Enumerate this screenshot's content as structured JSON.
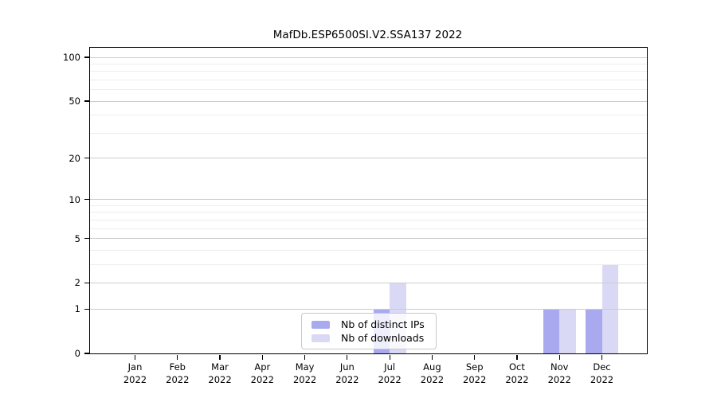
{
  "chart_data": {
    "type": "bar",
    "title": "MafDb.ESP6500SI.V2.SSA137 2022",
    "categories": [
      "Jan 2022",
      "Feb 2022",
      "Mar 2022",
      "Apr 2022",
      "May 2022",
      "Jun 2022",
      "Jul 2022",
      "Aug 2022",
      "Sep 2022",
      "Oct 2022",
      "Nov 2022",
      "Dec 2022"
    ],
    "series": [
      {
        "name": "Nb of distinct IPs",
        "color": "#a9a9f0",
        "values": [
          0,
          0,
          0,
          0,
          0,
          0,
          1,
          0,
          0,
          0,
          1,
          1
        ]
      },
      {
        "name": "Nb of downloads",
        "color": "#d9d9f6",
        "values": [
          0,
          0,
          0,
          0,
          0,
          0,
          2,
          0,
          0,
          0,
          1,
          3
        ]
      }
    ],
    "xlabel": "",
    "ylabel": "",
    "ylim": [
      0,
      100
    ],
    "y_scale": "log1p",
    "y_ticks": [
      0,
      1,
      2,
      5,
      10,
      20,
      50,
      100
    ],
    "y_gridlines": [
      1,
      2,
      3,
      4,
      5,
      6,
      7,
      8,
      9,
      10,
      20,
      30,
      40,
      50,
      60,
      70,
      80,
      90,
      100
    ],
    "grid": "horizontal-on",
    "legend_position": "inside-bottom-center",
    "colors": {
      "axis": "#000000",
      "gridline_major": "#cccccc",
      "gridline_minor": "#ededed",
      "background": "#ffffff",
      "legend_border": "#c8c8c8"
    }
  }
}
